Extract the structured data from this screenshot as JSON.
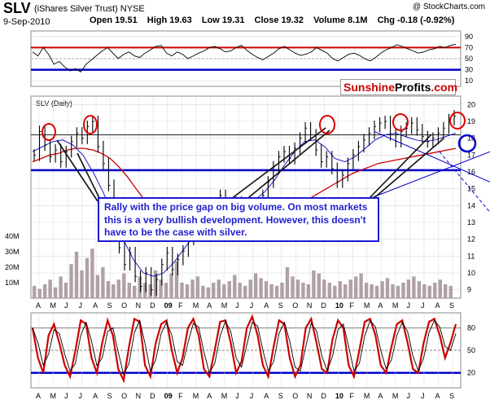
{
  "header": {
    "symbol": "SLV",
    "name": "(iShares Silver Trust)",
    "exchange": "NYSE",
    "source": "@ StockCharts.com",
    "date": "9-Sep-2010",
    "open_label": "Open 19.51",
    "high_label": "High 19.63",
    "low_label": "Low 19.31",
    "close_label": "Close 19.32",
    "volume_label": "Volume 8.1M",
    "chg_label": "Chg -0.18 (-0.92%)"
  },
  "brand": {
    "part1": "Sunshine",
    "part2": "Profits",
    "part3": ".com"
  },
  "callout": {
    "text": "Rally with the price gap on big volume. On most markets this is a very bullish development. However, this doesn't have to be the case with silver."
  },
  "colors": {
    "price_bar": "#000000",
    "ma_red": "#cc0000",
    "ma_blue": "#1a1acc",
    "support_blue": "#0000cc",
    "rsi_red_line": "#cc0000",
    "volume_bar": "#b0a0a8",
    "circle_red": "#dd0000",
    "circle_blue": "#0000cc",
    "grid": "#d8d8d8"
  },
  "chart_data": [
    {
      "type": "line",
      "panel": "RSI(14)",
      "y_ticks": [
        10,
        30,
        50,
        70,
        90
      ],
      "ylim": [
        0,
        100
      ],
      "reference_lines": [
        70,
        30
      ],
      "values": [
        62,
        55,
        70,
        58,
        40,
        45,
        35,
        28,
        32,
        26,
        40,
        48,
        56,
        64,
        70,
        60,
        50,
        58,
        62,
        55,
        52,
        60,
        66,
        72,
        74,
        60,
        55,
        62,
        58,
        50,
        55,
        60,
        64,
        70,
        72,
        68,
        62,
        64,
        70,
        74,
        65,
        58,
        52,
        48,
        54,
        60,
        68,
        72,
        66,
        60,
        56,
        58,
        62,
        70,
        65,
        60,
        50,
        46,
        52,
        58,
        60,
        56,
        50,
        46,
        52,
        60,
        66,
        70,
        75,
        72,
        68,
        64,
        60,
        62,
        66,
        68,
        72,
        70,
        74,
        76
      ]
    },
    {
      "type": "line",
      "panel": "SLV (Daily)",
      "x_ticks": [
        "A",
        "M",
        "J",
        "J",
        "A",
        "S",
        "O",
        "N",
        "D",
        "09",
        "F",
        "M",
        "A",
        "M",
        "J",
        "J",
        "A",
        "S",
        "O",
        "N",
        "D",
        "10",
        "F",
        "M",
        "A",
        "M",
        "J",
        "J",
        "A",
        "S"
      ],
      "y_ticks": [
        9,
        10,
        11,
        12,
        13,
        14,
        15,
        16,
        17,
        18,
        19,
        20
      ],
      "ylim": [
        8.5,
        20.5
      ],
      "horizontal_levels": [
        18.2,
        16.1
      ],
      "volume_ticks": [
        "10M",
        "20M",
        "30M",
        "40M"
      ],
      "close": [
        17.0,
        18.4,
        17.6,
        16.9,
        17.3,
        16.6,
        17.2,
        17.8,
        18.3,
        18.0,
        18.7,
        19.0,
        17.5,
        16.5,
        15.2,
        13.0,
        11.5,
        10.5,
        11.2,
        9.8,
        9.2,
        10.0,
        9.0,
        9.6,
        10.5,
        11.2,
        10.2,
        10.8,
        11.3,
        12.0,
        12.8,
        13.5,
        13.2,
        12.6,
        13.4,
        14.6,
        14.0,
        13.5,
        14.2,
        13.8,
        13.3,
        13.0,
        13.8,
        14.6,
        15.4,
        16.3,
        16.9,
        17.2,
        16.8,
        17.4,
        18.0,
        18.6,
        18.2,
        17.3,
        16.6,
        16.9,
        16.2,
        15.4,
        15.8,
        16.5,
        17.0,
        17.5,
        17.9,
        18.3,
        18.7,
        18.9,
        19.0,
        18.2,
        17.8,
        18.4,
        18.6,
        18.9,
        18.5,
        18.1,
        17.8,
        18.0,
        18.3,
        18.6,
        19.1,
        19.32
      ],
      "ma_red": [
        16.6,
        16.8,
        17.0,
        17.1,
        17.3,
        17.4,
        17.4,
        17.3,
        17.1,
        16.8,
        16.3,
        15.7,
        15.0,
        14.3,
        13.6,
        13.0,
        12.6,
        12.3,
        12.2,
        12.2,
        12.3,
        12.4,
        12.6,
        12.8,
        13.0,
        13.2,
        13.3,
        13.4,
        13.5,
        13.6,
        13.8,
        14.1,
        14.4,
        14.7,
        15.0,
        15.3,
        15.6,
        15.9,
        16.1,
        16.3,
        16.5,
        16.6,
        16.7,
        16.8,
        16.9,
        17.0,
        17.1,
        17.2,
        17.3,
        17.4
      ],
      "ma_blue": [
        17.2,
        17.5,
        17.8,
        17.9,
        17.6,
        17.0,
        16.0,
        14.8,
        13.4,
        12.0,
        10.8,
        10.0,
        9.8,
        10.0,
        10.6,
        11.4,
        12.2,
        12.9,
        13.4,
        13.8,
        14.0,
        14.1,
        14.3,
        14.8,
        15.5,
        16.4,
        17.2,
        17.8,
        17.9,
        17.5,
        16.8,
        16.6,
        16.9,
        17.4,
        17.9,
        18.2,
        18.3,
        18.1,
        17.9,
        17.8,
        17.9,
        18.1,
        18.3
      ],
      "volume_m": [
        8,
        6,
        9,
        12,
        7,
        14,
        10,
        22,
        30,
        18,
        26,
        32,
        15,
        20,
        11,
        9,
        12,
        16,
        10,
        8,
        14,
        10,
        9,
        18,
        12,
        10,
        16,
        24,
        10,
        9,
        12,
        14,
        8,
        7,
        10,
        12,
        9,
        11,
        15,
        10,
        8,
        12,
        16,
        13,
        11,
        9,
        8,
        10,
        20,
        14,
        12,
        10,
        9,
        18,
        16,
        12,
        10,
        8,
        11,
        9,
        12,
        14,
        16,
        10,
        9,
        8,
        11,
        13,
        9,
        8,
        10,
        12,
        14,
        11,
        9,
        8,
        10,
        12,
        9,
        8
      ]
    },
    {
      "type": "line",
      "panel": "Stochastic",
      "x_ticks": [
        "A",
        "M",
        "J",
        "J",
        "A",
        "S",
        "O",
        "N",
        "D",
        "09",
        "F",
        "M",
        "A",
        "M",
        "J",
        "J",
        "A",
        "S",
        "O",
        "N",
        "D",
        "10",
        "F",
        "M",
        "A",
        "M",
        "J",
        "J",
        "A",
        "S"
      ],
      "y_ticks": [
        20,
        50,
        80
      ],
      "ylim": [
        0,
        100
      ],
      "reference_lines": [
        80,
        50,
        20
      ],
      "values": [
        80,
        40,
        20,
        70,
        85,
        60,
        30,
        15,
        50,
        90,
        85,
        40,
        20,
        60,
        90,
        70,
        25,
        10,
        55,
        92,
        88,
        30,
        15,
        60,
        85,
        90,
        50,
        20,
        40,
        80,
        92,
        70,
        25,
        15,
        50,
        88,
        90,
        60,
        20,
        35,
        80,
        95,
        70,
        30,
        15,
        55,
        90,
        85,
        40,
        15,
        30,
        80,
        92,
        60,
        25,
        20,
        65,
        90,
        80,
        30,
        15,
        50,
        88,
        92,
        70,
        30,
        20,
        55,
        85,
        90,
        60,
        25,
        20,
        60,
        88,
        92,
        70,
        40,
        60,
        85
      ]
    }
  ]
}
